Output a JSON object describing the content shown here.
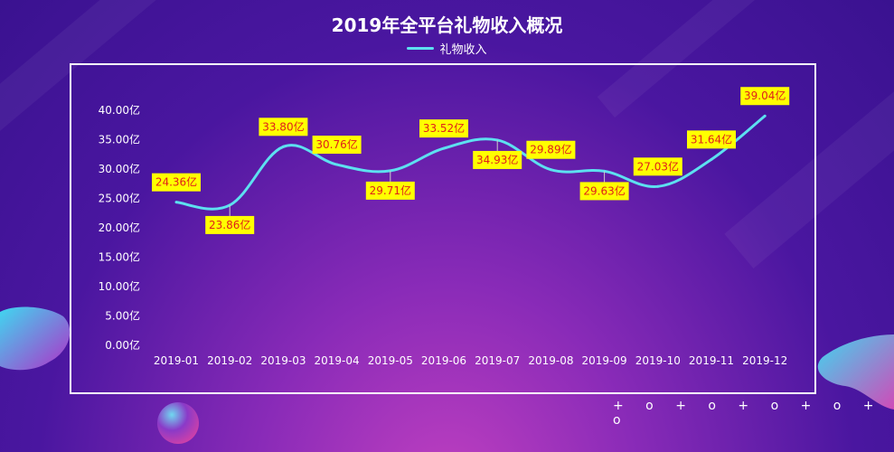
{
  "chart_data": {
    "type": "line",
    "title": "2019年全平台礼物收入概况",
    "categories": [
      "2019-01",
      "2019-02",
      "2019-03",
      "2019-04",
      "2019-05",
      "2019-06",
      "2019-07",
      "2019-08",
      "2019-09",
      "2019-10",
      "2019-11",
      "2019-12"
    ],
    "series": [
      {
        "name": "礼物收入",
        "values": [
          24.36,
          23.86,
          33.8,
          30.76,
          29.71,
          33.52,
          34.93,
          29.89,
          29.63,
          27.03,
          31.64,
          39.04
        ],
        "labels": [
          "24.36亿",
          "23.86亿",
          "33.80亿",
          "30.76亿",
          "29.71亿",
          "33.52亿",
          "34.93亿",
          "29.89亿",
          "29.63亿",
          "27.03亿",
          "31.64亿",
          "39.04亿"
        ],
        "color": "#5de0f0"
      }
    ],
    "y_ticks": [
      "0.00亿",
      "5.00亿",
      "10.00亿",
      "15.00亿",
      "20.00亿",
      "25.00亿",
      "30.00亿",
      "35.00亿",
      "40.00亿"
    ],
    "ylim": [
      0,
      40
    ],
    "grid": false,
    "legend_position": "top-center",
    "label_bg": "#ffff00",
    "label_color": "#e0201a"
  },
  "decor": {
    "symbols": "+ o + o + o + o + o"
  }
}
